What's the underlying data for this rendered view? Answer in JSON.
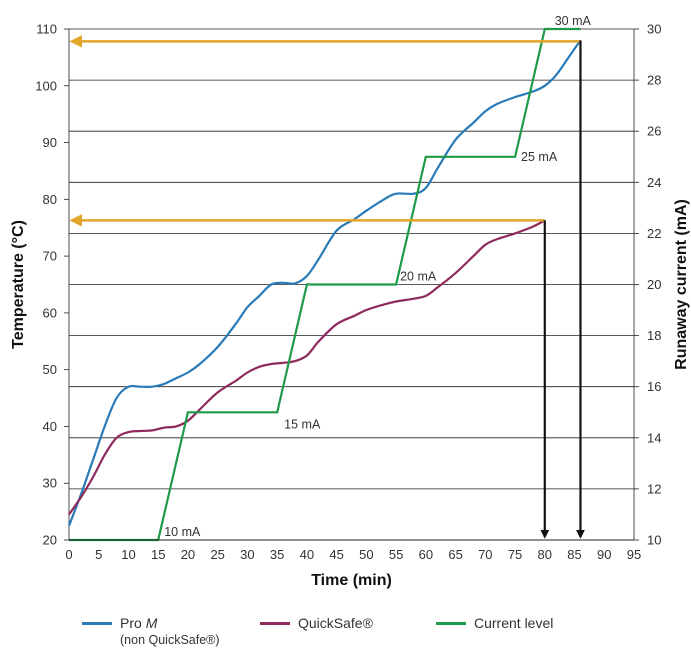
{
  "chart_data": {
    "type": "line",
    "xlabel": "Time (min)",
    "ylabel_left": "Temperature (°C)",
    "ylabel_right": "Runaway current (mA)",
    "xlim": [
      0,
      95
    ],
    "ylim_left": [
      20,
      110
    ],
    "ylim_right": [
      10,
      30
    ],
    "x_ticks": [
      "0",
      "5",
      "10",
      "15",
      "20",
      "25",
      "30",
      "35",
      "40",
      "45",
      "50",
      "55",
      "60",
      "65",
      "70",
      "75",
      "80",
      "85",
      "90",
      "95"
    ],
    "y_ticks_left": [
      "20",
      "30",
      "40",
      "50",
      "60",
      "70",
      "80",
      "90",
      "100",
      "110"
    ],
    "y_ticks_right": [
      "10",
      "12",
      "14",
      "16",
      "18",
      "20",
      "22",
      "24",
      "26",
      "28",
      "30"
    ],
    "grid": "horizontal",
    "legend_position": "bottom",
    "series": [
      {
        "name": "Pro M",
        "name_prefix": "Pro ",
        "name_italic": "M",
        "sub": "(non QuickSafe®)",
        "axis": "left",
        "color": "#2a7ab8",
        "x": [
          0,
          2,
          4,
          6,
          8,
          10,
          12,
          14,
          16,
          18,
          20,
          22,
          25,
          28,
          30,
          32,
          34,
          36,
          38,
          40,
          42,
          45,
          48,
          50,
          53,
          55,
          58,
          60,
          62,
          65,
          68,
          70,
          72,
          75,
          78,
          80,
          82,
          84,
          86
        ],
        "values": [
          22.5,
          28,
          34,
          40,
          45,
          47,
          47,
          47,
          47.5,
          48.5,
          49.5,
          51,
          54,
          58,
          61,
          63,
          65,
          65.3,
          65.2,
          66.5,
          69.5,
          74.5,
          76.5,
          78,
          80,
          81,
          81,
          82,
          85.5,
          90.5,
          93.5,
          95.5,
          96.8,
          98,
          99,
          100,
          102,
          105,
          108
        ]
      },
      {
        "name": "QuickSafe®",
        "axis": "left",
        "color": "#8e2a5c",
        "x": [
          0,
          2,
          4,
          6,
          8,
          10,
          12,
          14,
          16,
          18,
          20,
          22,
          25,
          28,
          30,
          32,
          34,
          36,
          38,
          40,
          42,
          45,
          48,
          50,
          53,
          55,
          58,
          60,
          62,
          65,
          68,
          70,
          72,
          75,
          78,
          80
        ],
        "values": [
          24.5,
          27.5,
          31,
          35,
          38,
          39,
          39.2,
          39.3,
          39.8,
          40,
          41,
          43,
          46,
          48,
          49.5,
          50.5,
          51,
          51.2,
          51.5,
          52.5,
          55,
          58,
          59.5,
          60.5,
          61.5,
          62,
          62.5,
          63,
          64.5,
          67,
          70,
          72,
          73,
          74,
          75.2,
          76.3
        ]
      },
      {
        "name": "Current level",
        "axis": "right",
        "color": "#1f9a48",
        "x": [
          0,
          15,
          20,
          35,
          40,
          55,
          60,
          75,
          80,
          86
        ],
        "values": [
          10,
          10,
          15,
          15,
          20,
          20,
          25,
          25,
          30,
          30
        ]
      }
    ],
    "step_labels": [
      "10 mA",
      "15   mA",
      "20 mA",
      "25 mA",
      "30 mA"
    ],
    "annotations": {
      "arrow_color": "#e3a62a",
      "drop_arrow_color": "#111111",
      "pro_m_end": {
        "x": 86,
        "y": 108
      },
      "quicksafe_end": {
        "x": 80,
        "y": 76.3
      }
    }
  }
}
